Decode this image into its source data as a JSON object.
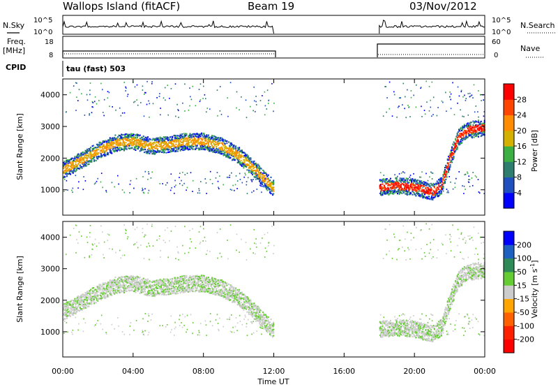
{
  "header": {
    "station": "Wallops Island (fitACF)",
    "beam": "Beam 19",
    "date": "03/Nov/2012"
  },
  "noise_panel": {
    "left_label": "N.Sky",
    "right_label": "N.Search",
    "left_ticks": [
      "10^5",
      "10^0"
    ],
    "right_ticks": [
      "10^5",
      "10^0"
    ]
  },
  "freq_panel": {
    "left_label_line1": "Freq.",
    "left_label_line2": "[MHz]",
    "right_label": "Nave",
    "left_ticks": [
      "18",
      "8"
    ],
    "right_ticks": [
      "60",
      "0"
    ]
  },
  "cpid": {
    "label": "CPID",
    "value": "tau (fast) 503"
  },
  "colors": {
    "power_scale": [
      "#0000ff",
      "#2050c0",
      "#2e7d6e",
      "#3cb043",
      "#d4b000",
      "#ff8c00",
      "#ff4500",
      "#ff0000"
    ],
    "velocity_scale": [
      "#0000ff",
      "#1e60c0",
      "#2e8b57",
      "#66cc33",
      "#cccccc",
      "#ffa500",
      "#ff6000",
      "#ff2000",
      "#ff0000"
    ]
  },
  "chart_data": [
    {
      "type": "heatmap",
      "name": "power",
      "ylabel": "Slant Range [km]",
      "yticks": [
        "1000",
        "2000",
        "3000",
        "4000"
      ],
      "ylim": [
        200,
        4500
      ],
      "colorbar_label": "Power [dB]",
      "colorbar_ticks": [
        "4",
        "8",
        "12",
        "16",
        "20",
        "24",
        "28"
      ],
      "data_gap_hours": [
        12,
        18
      ],
      "echo_bands": [
        {
          "t": [
            0,
            1,
            2,
            3,
            4,
            5,
            6,
            7,
            8,
            9,
            10,
            11,
            12
          ],
          "range_km": [
            1650,
            1950,
            2250,
            2500,
            2550,
            2400,
            2450,
            2550,
            2550,
            2400,
            2100,
            1600,
            1050
          ]
        },
        {
          "t": [
            18,
            19,
            20,
            21,
            21.5,
            22,
            22.5,
            23,
            24
          ],
          "range_km": [
            1100,
            1150,
            1100,
            950,
            1150,
            2000,
            2700,
            2900,
            3000
          ]
        }
      ]
    },
    {
      "type": "heatmap",
      "name": "velocity",
      "ylabel": "Slant Range [km]",
      "yticks": [
        "1000",
        "2000",
        "3000",
        "4000"
      ],
      "ylim": [
        200,
        4500
      ],
      "colorbar_label": "Velocity [m s",
      "colorbar_unit_sup": "-1",
      "colorbar_ticks": [
        "200",
        "100",
        "50",
        "15",
        "-15",
        "-50",
        "-100",
        "-200"
      ]
    }
  ],
  "x_axis": {
    "ticks": [
      "00:00",
      "04:00",
      "08:00",
      "12:00",
      "16:00",
      "20:00",
      "00:00"
    ],
    "label": "Time UT"
  }
}
